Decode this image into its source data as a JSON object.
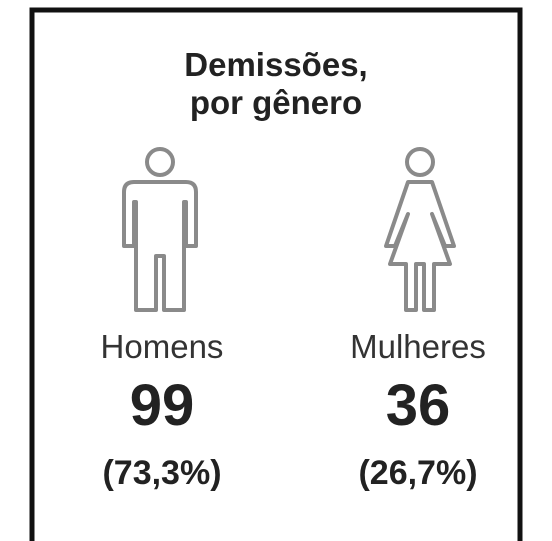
{
  "title": [
    "Demissões,",
    "por gênero"
  ],
  "groups": [
    {
      "label": "Homens",
      "count": "99",
      "percent": "(73,3%)"
    },
    {
      "label": "Mulheres",
      "count": "36",
      "percent": "(26,7%)"
    }
  ]
}
